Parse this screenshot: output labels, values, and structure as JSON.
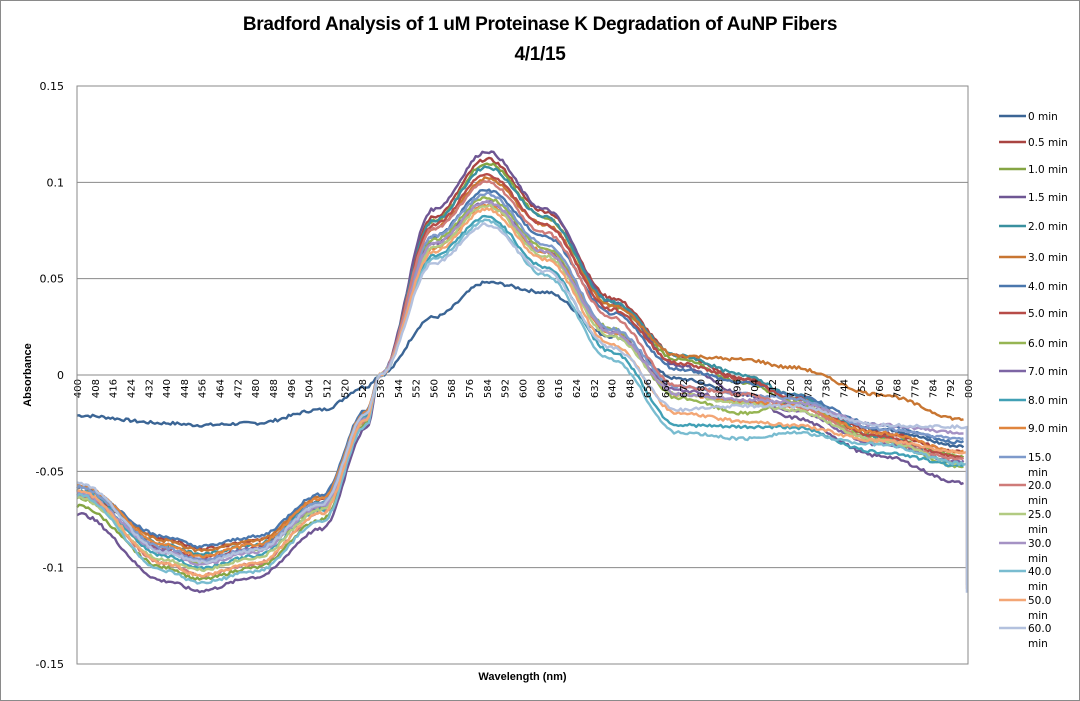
{
  "chart_data": {
    "type": "line",
    "title": "Bradford Analysis of 1 uM Proteinase K Degradation of  AuNP Fibers",
    "subtitle": "4/1/15",
    "xlabel": "Wavelength (nm)",
    "ylabel": "Absorbance",
    "xlim": [
      400,
      800
    ],
    "ylim": [
      -0.15,
      0.15
    ],
    "yticks": [
      0.15,
      0.1,
      0.05,
      0,
      -0.05,
      -0.1,
      -0.15
    ],
    "ytick_labels": [
      "0.15",
      "0.1",
      "0.05",
      "0",
      "-0.05",
      "-0.1",
      "-0.15"
    ],
    "xticks": [
      400,
      408,
      416,
      424,
      432,
      440,
      448,
      456,
      464,
      472,
      480,
      488,
      496,
      504,
      512,
      520,
      528,
      536,
      544,
      552,
      560,
      568,
      576,
      584,
      592,
      600,
      608,
      616,
      624,
      632,
      640,
      648,
      656,
      664,
      672,
      680,
      688,
      696,
      704,
      712,
      720,
      728,
      736,
      744,
      752,
      760,
      768,
      776,
      784,
      792,
      800
    ],
    "grid": "horizontal",
    "legend_position": "right",
    "x_key": [
      400,
      440,
      455,
      480,
      510,
      530,
      536,
      560,
      584,
      610,
      640,
      670,
      700,
      720,
      760,
      798
    ],
    "series": [
      {
        "name": "0 min",
        "color": "#3b6595",
        "values": [
          -0.021,
          -0.025,
          -0.026,
          -0.025,
          -0.018,
          -0.006,
          0.0,
          0.03,
          0.048,
          0.043,
          0.02,
          -0.002,
          -0.01,
          -0.015,
          -0.028,
          -0.037
        ]
      },
      {
        "name": "0.5 min",
        "color": "#a94441",
        "values": [
          -0.062,
          -0.085,
          -0.09,
          -0.086,
          -0.065,
          -0.02,
          0.0,
          0.082,
          0.112,
          0.085,
          0.04,
          0.01,
          -0.002,
          -0.01,
          -0.03,
          -0.04
        ]
      },
      {
        "name": "1.0 min",
        "color": "#85a543",
        "values": [
          -0.068,
          -0.1,
          -0.106,
          -0.1,
          -0.075,
          -0.025,
          0.0,
          0.08,
          0.11,
          0.082,
          0.036,
          0.008,
          -0.004,
          -0.012,
          -0.032,
          -0.042
        ]
      },
      {
        "name": "1.5 min",
        "color": "#6e5693",
        "values": [
          -0.072,
          -0.107,
          -0.112,
          -0.105,
          -0.08,
          -0.028,
          0.0,
          0.086,
          0.116,
          0.086,
          0.038,
          0.005,
          -0.01,
          -0.022,
          -0.042,
          -0.056
        ]
      },
      {
        "name": "2.0 min",
        "color": "#39909f",
        "values": [
          -0.06,
          -0.088,
          -0.093,
          -0.088,
          -0.066,
          -0.021,
          0.0,
          0.08,
          0.108,
          0.082,
          0.038,
          0.01,
          0.0,
          -0.01,
          -0.032,
          -0.046
        ]
      },
      {
        "name": "3.0 min",
        "color": "#c87632",
        "values": [
          -0.058,
          -0.086,
          -0.091,
          -0.086,
          -0.063,
          -0.019,
          0.0,
          0.076,
          0.102,
          0.078,
          0.036,
          0.01,
          0.008,
          0.004,
          -0.01,
          -0.023
        ]
      },
      {
        "name": "4.0 min",
        "color": "#4a77ad",
        "values": [
          -0.058,
          -0.084,
          -0.089,
          -0.084,
          -0.062,
          -0.018,
          0.0,
          0.072,
          0.096,
          0.072,
          0.032,
          0.003,
          -0.004,
          -0.01,
          -0.026,
          -0.035
        ]
      },
      {
        "name": "5.0 min",
        "color": "#b74c48",
        "values": [
          -0.063,
          -0.09,
          -0.095,
          -0.09,
          -0.068,
          -0.022,
          0.0,
          0.078,
          0.104,
          0.078,
          0.034,
          0.006,
          -0.002,
          -0.012,
          -0.032,
          -0.043
        ]
      },
      {
        "name": "6.0 min",
        "color": "#96b553",
        "values": [
          -0.064,
          -0.092,
          -0.097,
          -0.091,
          -0.069,
          -0.022,
          0.0,
          0.07,
          0.092,
          0.066,
          0.024,
          -0.012,
          -0.02,
          -0.014,
          -0.034,
          -0.048
        ]
      },
      {
        "name": "7.0 min",
        "color": "#7d65a4",
        "values": [
          -0.063,
          -0.091,
          -0.096,
          -0.09,
          -0.068,
          -0.022,
          0.0,
          0.068,
          0.09,
          0.064,
          0.022,
          -0.008,
          -0.014,
          -0.018,
          -0.036,
          -0.045
        ]
      },
      {
        "name": "8.0 min",
        "color": "#41a0b5",
        "values": [
          -0.06,
          -0.094,
          -0.1,
          -0.094,
          -0.07,
          -0.022,
          0.0,
          0.062,
          0.082,
          0.056,
          0.012,
          -0.026,
          -0.027,
          -0.027,
          -0.04,
          -0.047
        ]
      },
      {
        "name": "9.0 min",
        "color": "#e0853d",
        "values": [
          -0.057,
          -0.088,
          -0.094,
          -0.088,
          -0.064,
          -0.019,
          0.0,
          0.066,
          0.088,
          0.064,
          0.022,
          -0.01,
          -0.014,
          -0.016,
          -0.03,
          -0.04
        ]
      },
      {
        "name": "15.0 min",
        "color": "#7e9acb",
        "values": [
          -0.058,
          -0.09,
          -0.096,
          -0.09,
          -0.066,
          -0.02,
          0.0,
          0.072,
          0.094,
          0.068,
          0.024,
          -0.006,
          -0.01,
          -0.012,
          -0.028,
          -0.033
        ]
      },
      {
        "name": "20.0 min",
        "color": "#cf7b79",
        "values": [
          -0.062,
          -0.098,
          -0.104,
          -0.098,
          -0.072,
          -0.024,
          0.0,
          0.076,
          0.1,
          0.074,
          0.03,
          -0.006,
          -0.01,
          -0.016,
          -0.034,
          -0.044
        ]
      },
      {
        "name": "25.0 min",
        "color": "#b2cb82",
        "values": [
          -0.064,
          -0.096,
          -0.101,
          -0.095,
          -0.07,
          -0.023,
          0.0,
          0.066,
          0.088,
          0.062,
          0.02,
          -0.01,
          -0.015,
          -0.018,
          -0.034,
          -0.046
        ]
      },
      {
        "name": "30.0 min",
        "color": "#a592c4",
        "values": [
          -0.061,
          -0.092,
          -0.098,
          -0.092,
          -0.068,
          -0.022,
          0.0,
          0.068,
          0.09,
          0.064,
          0.022,
          -0.01,
          -0.013,
          -0.014,
          -0.026,
          -0.03
        ]
      },
      {
        "name": "40.0 min",
        "color": "#79bcd0",
        "values": [
          -0.062,
          -0.102,
          -0.108,
          -0.102,
          -0.076,
          -0.026,
          0.0,
          0.06,
          0.08,
          0.052,
          0.008,
          -0.03,
          -0.033,
          -0.03,
          -0.036,
          -0.046
        ]
      },
      {
        "name": "50.0 min",
        "color": "#f3a675",
        "values": [
          -0.06,
          -0.098,
          -0.104,
          -0.098,
          -0.072,
          -0.023,
          0.0,
          0.064,
          0.086,
          0.06,
          0.016,
          -0.02,
          -0.024,
          -0.026,
          -0.034,
          -0.04
        ]
      },
      {
        "name": "60.0 min",
        "color": "#b3c1de",
        "values": [
          -0.056,
          -0.092,
          -0.097,
          -0.091,
          -0.067,
          -0.02,
          0.0,
          0.058,
          0.078,
          0.054,
          0.014,
          -0.018,
          -0.016,
          -0.016,
          -0.026,
          -0.027
        ]
      }
    ]
  }
}
